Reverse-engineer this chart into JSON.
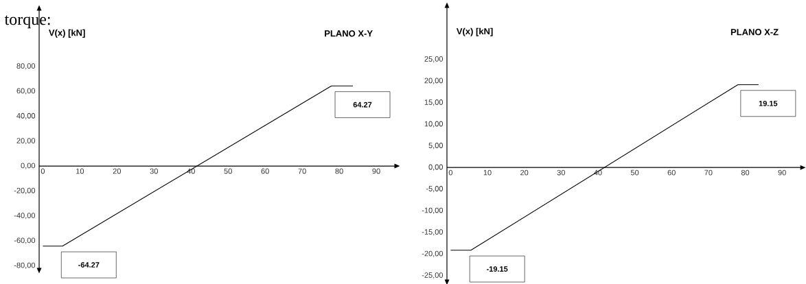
{
  "chart_data": [
    {
      "type": "line",
      "title": "PLANO X-Y",
      "ylabel": "V(x) [kN]",
      "x": [
        0,
        5.3,
        77.9,
        83.7
      ],
      "series": [
        {
          "color": "#000000",
          "values": [
            -64.27,
            -64.27,
            64.27,
            64.27
          ]
        }
      ],
      "xlim": [
        -1,
        95
      ],
      "ylim": [
        -82,
        125
      ],
      "xticks": [
        0,
        10,
        20,
        30,
        40,
        50,
        60,
        70,
        80,
        90
      ],
      "yticks": [
        {
          "value": -80,
          "label": "-80,00"
        },
        {
          "value": -60,
          "label": "-60,00"
        },
        {
          "value": -40,
          "label": "-40,00"
        },
        {
          "value": -20,
          "label": "-20,00"
        },
        {
          "value": 0,
          "label": "0,00"
        },
        {
          "value": 20,
          "label": "20,00"
        },
        {
          "value": 40,
          "label": "40,00"
        },
        {
          "value": 60,
          "label": "60,00"
        },
        {
          "value": 80,
          "label": "80,00"
        }
      ],
      "annotations": [
        "torque:",
        {
          "text": "-64.27",
          "x": 5.3,
          "y": -64.27
        },
        {
          "text": "64.27",
          "x": 83.7,
          "y": 64.27
        }
      ]
    },
    {
      "type": "line",
      "title": "PLANO X-Z",
      "ylabel": "V(x) [kN]",
      "x": [
        0,
        5.5,
        78,
        83.6
      ],
      "series": [
        {
          "color": "#000000",
          "values": [
            -19.15,
            -19.15,
            19.15,
            19.15
          ]
        }
      ],
      "xlim": [
        -1,
        95
      ],
      "ylim": [
        -26,
        37
      ],
      "xticks": [
        0,
        10,
        20,
        30,
        40,
        50,
        60,
        70,
        80,
        90
      ],
      "yticks": [
        {
          "value": -25,
          "label": "-25,00"
        },
        {
          "value": -20,
          "label": "-20,00"
        },
        {
          "value": -15,
          "label": "-15,00"
        },
        {
          "value": -10,
          "label": "-10,00"
        },
        {
          "value": -5,
          "label": "-5,00"
        },
        {
          "value": 0,
          "label": "0,00"
        },
        {
          "value": 5,
          "label": "5,00"
        },
        {
          "value": 10,
          "label": "10,00"
        },
        {
          "value": 15,
          "label": "15,00"
        },
        {
          "value": 20,
          "label": "20,00"
        },
        {
          "value": 25,
          "label": "25,00"
        }
      ],
      "annotations": [
        {
          "text": "-19.15",
          "x": 5.5,
          "y": -19.15
        },
        {
          "text": "19.15",
          "x": 83.6,
          "y": 19.15
        }
      ]
    }
  ]
}
